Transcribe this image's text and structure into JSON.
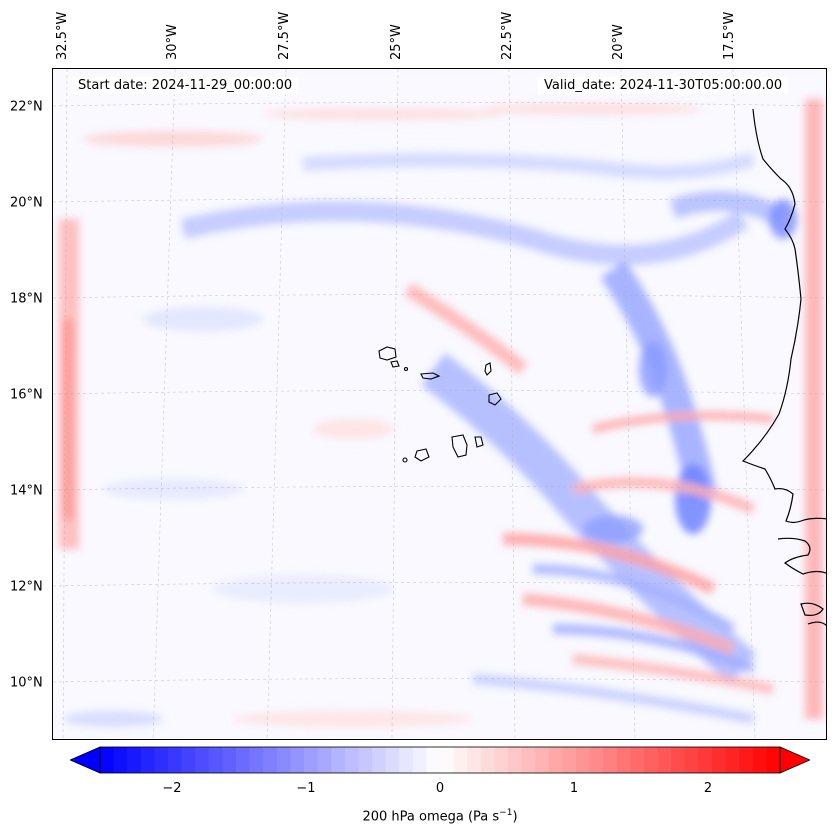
{
  "map": {
    "start_date": "Start date: 2024-11-29_00:00:00",
    "valid_date": "Valid_date: 2024-11-30T05:00:00.00",
    "lon_labels": [
      "32.5°W",
      "30°W",
      "27.5°W",
      "25°W",
      "22.5°W",
      "20°W",
      "17.5°W"
    ],
    "lat_labels": [
      "22°N",
      "20°N",
      "18°N",
      "16°N",
      "14°N",
      "12°N",
      "10°N"
    ]
  },
  "colorbar": {
    "ticks": [
      "−2",
      "−1",
      "0",
      "1",
      "2"
    ],
    "label": "200 hPa omega (Pa s",
    "label_sup": "−1",
    "label_end": ")",
    "min": -2.5,
    "max": 2.5,
    "neg_color": "#0000ff",
    "pos_color": "#ff0000"
  }
}
